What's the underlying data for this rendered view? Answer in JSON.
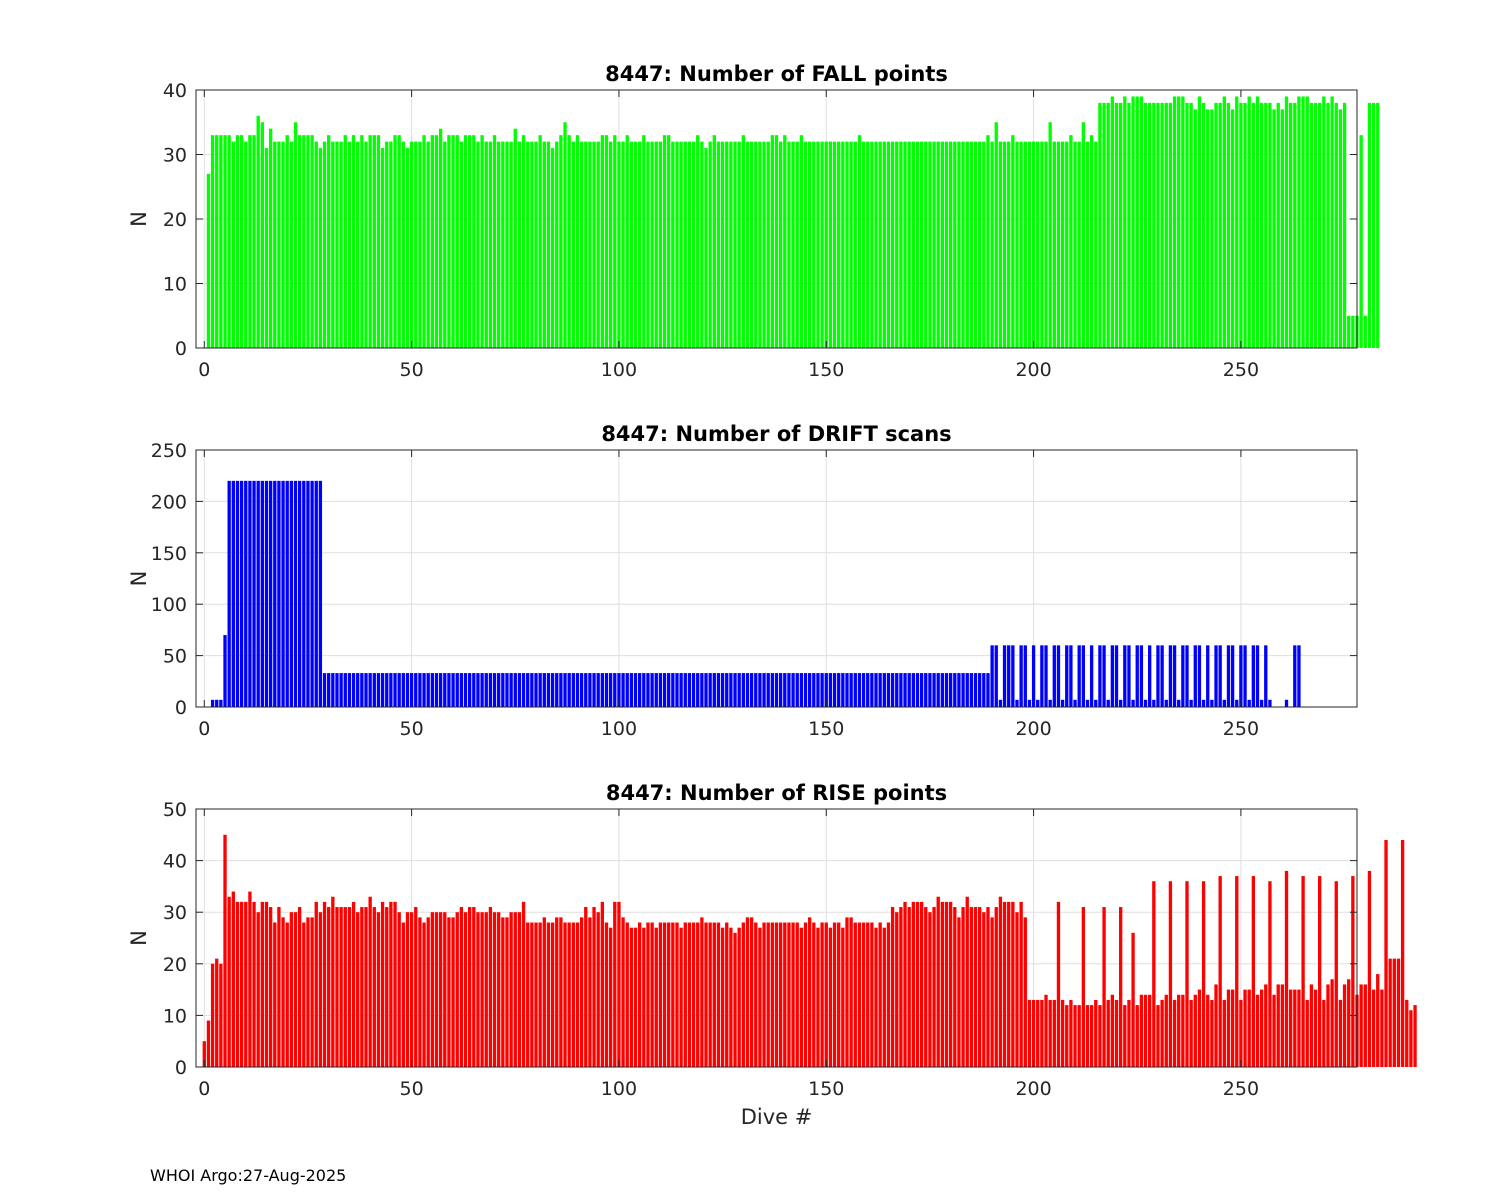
{
  "footer": "WHOI Argo:27-Aug-2025",
  "chart_data": [
    {
      "type": "bar",
      "title": "8447: Number of FALL points",
      "xlabel": "",
      "ylabel": "N",
      "xlim": [
        -2,
        278
      ],
      "ylim": [
        0,
        40
      ],
      "xticks": [
        0,
        50,
        100,
        150,
        200,
        250
      ],
      "yticks": [
        0,
        10,
        20,
        30,
        40
      ],
      "grid": true,
      "color": "#00ff00",
      "x_start": 1,
      "values": [
        27,
        33,
        33,
        33,
        33,
        33,
        32,
        33,
        33,
        32,
        33,
        33,
        36,
        35,
        31,
        34,
        32,
        32,
        32,
        33,
        32,
        35,
        33,
        33,
        33,
        33,
        32,
        31,
        32,
        33,
        32,
        32,
        32,
        33,
        32,
        33,
        32,
        33,
        32,
        33,
        33,
        33,
        31,
        32,
        32,
        33,
        33,
        32,
        31,
        32,
        32,
        32,
        33,
        32,
        33,
        33,
        34,
        32,
        33,
        33,
        33,
        32,
        33,
        33,
        33,
        32,
        33,
        32,
        32,
        33,
        32,
        32,
        32,
        32,
        34,
        32,
        33,
        32,
        32,
        32,
        33,
        32,
        32,
        31,
        32,
        33,
        35,
        33,
        32,
        33,
        32,
        32,
        32,
        32,
        32,
        33,
        33,
        32,
        33,
        32,
        32,
        33,
        32,
        32,
        32,
        33,
        32,
        32,
        32,
        32,
        33,
        33,
        32,
        32,
        32,
        32,
        32,
        32,
        33,
        32,
        31,
        32,
        33,
        32,
        32,
        32,
        32,
        32,
        32,
        33,
        32,
        32,
        32,
        32,
        32,
        32,
        33,
        33,
        32,
        33,
        32,
        32,
        32,
        33,
        32,
        32,
        32,
        32,
        32,
        32,
        32,
        32,
        32,
        32,
        32,
        32,
        32,
        33,
        32,
        32,
        32,
        32,
        32,
        32,
        32,
        32,
        32,
        32,
        32,
        32,
        32,
        32,
        32,
        32,
        32,
        32,
        32,
        32,
        32,
        32,
        32,
        32,
        32,
        32,
        32,
        32,
        32,
        32,
        33,
        32,
        35,
        32,
        32,
        32,
        33,
        32,
        32,
        32,
        32,
        32,
        32,
        32,
        32,
        35,
        32,
        32,
        32,
        32,
        33,
        32,
        32,
        35,
        32,
        33,
        32,
        38,
        38,
        38,
        39,
        38,
        38,
        39,
        38,
        39,
        39,
        39,
        38,
        38,
        38,
        38,
        38,
        38,
        38,
        39,
        39,
        39,
        38,
        38,
        37,
        39,
        38,
        37,
        37,
        38,
        38,
        39,
        38,
        37,
        39,
        38,
        38,
        39,
        38,
        39,
        38,
        38,
        38,
        37,
        38,
        37,
        39,
        38,
        38,
        39,
        39,
        39,
        38,
        38,
        38,
        39,
        38,
        39,
        38,
        37,
        38,
        5,
        5,
        5,
        33,
        5,
        38,
        38,
        38
      ]
    },
    {
      "type": "bar",
      "title": "8447: Number of DRIFT scans",
      "xlabel": "",
      "ylabel": "N",
      "xlim": [
        -2,
        278
      ],
      "ylim": [
        0,
        250
      ],
      "xticks": [
        0,
        50,
        100,
        150,
        200,
        250
      ],
      "yticks": [
        0,
        50,
        100,
        150,
        200,
        250
      ],
      "grid": true,
      "color": "#0000ff",
      "x_start": 1,
      "values": [
        0,
        7,
        7,
        7,
        70,
        220,
        220,
        220,
        220,
        220,
        220,
        220,
        220,
        220,
        220,
        220,
        220,
        220,
        220,
        220,
        220,
        220,
        220,
        220,
        220,
        220,
        220,
        220,
        33,
        33,
        33,
        33,
        33,
        33,
        33,
        33,
        33,
        33,
        33,
        33,
        33,
        33,
        33,
        33,
        33,
        33,
        33,
        33,
        33,
        33,
        33,
        33,
        33,
        33,
        33,
        33,
        33,
        33,
        33,
        33,
        33,
        33,
        33,
        33,
        33,
        33,
        33,
        33,
        33,
        33,
        33,
        33,
        33,
        33,
        33,
        33,
        33,
        33,
        33,
        33,
        33,
        33,
        33,
        33,
        33,
        33,
        33,
        33,
        33,
        33,
        33,
        33,
        33,
        33,
        33,
        33,
        33,
        33,
        33,
        33,
        33,
        33,
        33,
        33,
        33,
        33,
        33,
        33,
        33,
        33,
        33,
        33,
        33,
        33,
        33,
        33,
        33,
        33,
        33,
        33,
        33,
        33,
        33,
        33,
        33,
        33,
        33,
        33,
        33,
        33,
        33,
        33,
        33,
        33,
        33,
        33,
        33,
        33,
        33,
        33,
        33,
        33,
        33,
        33,
        33,
        33,
        33,
        33,
        33,
        33,
        33,
        33,
        33,
        33,
        33,
        33,
        33,
        33,
        33,
        33,
        33,
        33,
        33,
        33,
        33,
        33,
        33,
        33,
        33,
        33,
        33,
        33,
        33,
        33,
        33,
        33,
        33,
        33,
        33,
        33,
        33,
        33,
        33,
        33,
        33,
        33,
        33,
        33,
        33,
        60,
        60,
        7,
        60,
        60,
        60,
        7,
        60,
        60,
        7,
        60,
        7,
        60,
        60,
        7,
        60,
        60,
        7,
        60,
        60,
        7,
        60,
        60,
        7,
        60,
        7,
        60,
        60,
        7,
        60,
        60,
        7,
        60,
        60,
        7,
        60,
        60,
        7,
        60,
        7,
        60,
        60,
        7,
        60,
        60,
        7,
        60,
        60,
        7,
        60,
        60,
        7,
        60,
        7,
        60,
        60,
        7,
        60,
        60,
        7,
        60,
        60,
        7,
        60,
        60,
        7,
        60,
        7,
        0,
        0,
        0,
        7,
        0,
        60,
        60
      ]
    },
    {
      "type": "bar",
      "title": "8447: Number of RISE points",
      "xlabel": "Dive #",
      "ylabel": "N",
      "xlim": [
        -2,
        278
      ],
      "ylim": [
        0,
        50
      ],
      "xticks": [
        0,
        50,
        100,
        150,
        200,
        250
      ],
      "yticks": [
        0,
        10,
        20,
        30,
        40,
        50
      ],
      "grid": true,
      "color": "#ff0000",
      "x_start": 0,
      "values": [
        5,
        9,
        20,
        21,
        20,
        45,
        33,
        34,
        32,
        32,
        32,
        34,
        32,
        30,
        32,
        32,
        31,
        28,
        31,
        29,
        28,
        30,
        30,
        31,
        28,
        29,
        29,
        32,
        30,
        32,
        31,
        33,
        31,
        31,
        31,
        31,
        32,
        30,
        31,
        31,
        33,
        31,
        30,
        32,
        31,
        32,
        32,
        30,
        28,
        30,
        30,
        31,
        29,
        28,
        29,
        30,
        30,
        30,
        30,
        29,
        29,
        30,
        31,
        30,
        31,
        31,
        30,
        30,
        30,
        31,
        30,
        30,
        29,
        29,
        30,
        30,
        30,
        32,
        28,
        28,
        28,
        28,
        29,
        28,
        28,
        29,
        29,
        28,
        28,
        28,
        28,
        29,
        31,
        29,
        31,
        30,
        32,
        28,
        27,
        32,
        32,
        29,
        28,
        27,
        27,
        28,
        27,
        28,
        28,
        27,
        28,
        28,
        28,
        28,
        28,
        27,
        28,
        28,
        28,
        28,
        29,
        28,
        28,
        28,
        28,
        27,
        28,
        27,
        26,
        27,
        28,
        29,
        29,
        28,
        27,
        28,
        28,
        28,
        28,
        28,
        28,
        28,
        28,
        28,
        27,
        28,
        29,
        28,
        27,
        28,
        28,
        27,
        28,
        28,
        27,
        29,
        29,
        28,
        28,
        28,
        28,
        28,
        27,
        28,
        27,
        28,
        31,
        30,
        31,
        32,
        31,
        32,
        32,
        32,
        31,
        30,
        31,
        33,
        32,
        32,
        32,
        31,
        29,
        31,
        33,
        31,
        31,
        31,
        30,
        31,
        29,
        31,
        33,
        32,
        32,
        32,
        30,
        32,
        29,
        13,
        13,
        13,
        13,
        14,
        13,
        13,
        32,
        13,
        12,
        13,
        12,
        12,
        31,
        12,
        12,
        13,
        12,
        31,
        13,
        14,
        13,
        31,
        12,
        13,
        26,
        12,
        14,
        14,
        14,
        36,
        12,
        13,
        14,
        36,
        13,
        14,
        14,
        36,
        13,
        14,
        15,
        36,
        14,
        13,
        16,
        37,
        13,
        15,
        15,
        37,
        13,
        15,
        15,
        37,
        14,
        15,
        16,
        36,
        14,
        16,
        16,
        38,
        15,
        15,
        15,
        37,
        13,
        16,
        15,
        37,
        13,
        16,
        17,
        36,
        13,
        16,
        17,
        37,
        14,
        16,
        16,
        38,
        15,
        18,
        15,
        44,
        21,
        21,
        21,
        44,
        13,
        11,
        12
      ]
    }
  ]
}
